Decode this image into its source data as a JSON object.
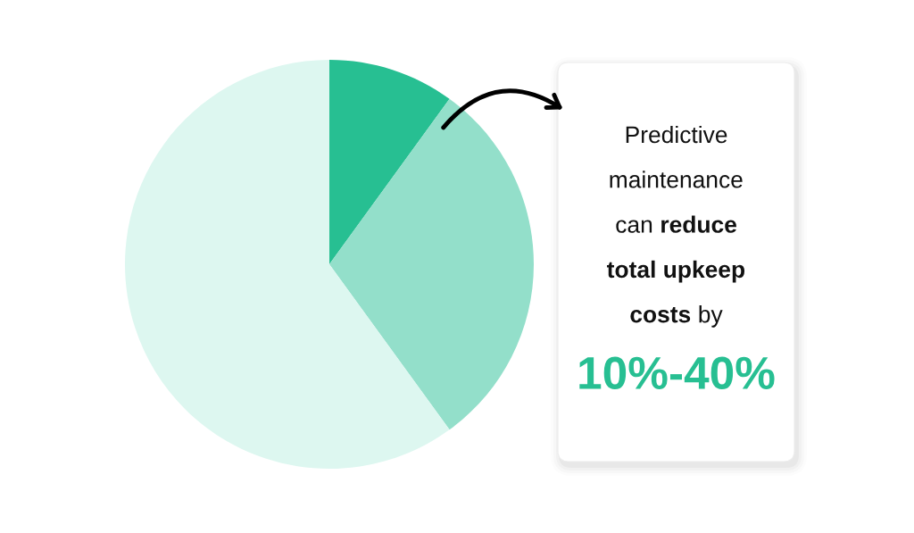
{
  "chart_data": {
    "type": "pie",
    "categories": [
      null,
      null,
      null
    ],
    "values": [
      10,
      30,
      60
    ],
    "colors": [
      "#27bf92",
      "#93dfca",
      "#ddf7f0"
    ],
    "annotations": [
      "Predictive maintenance can reduce total upkeep costs by",
      "10%-40%"
    ]
  }
}
